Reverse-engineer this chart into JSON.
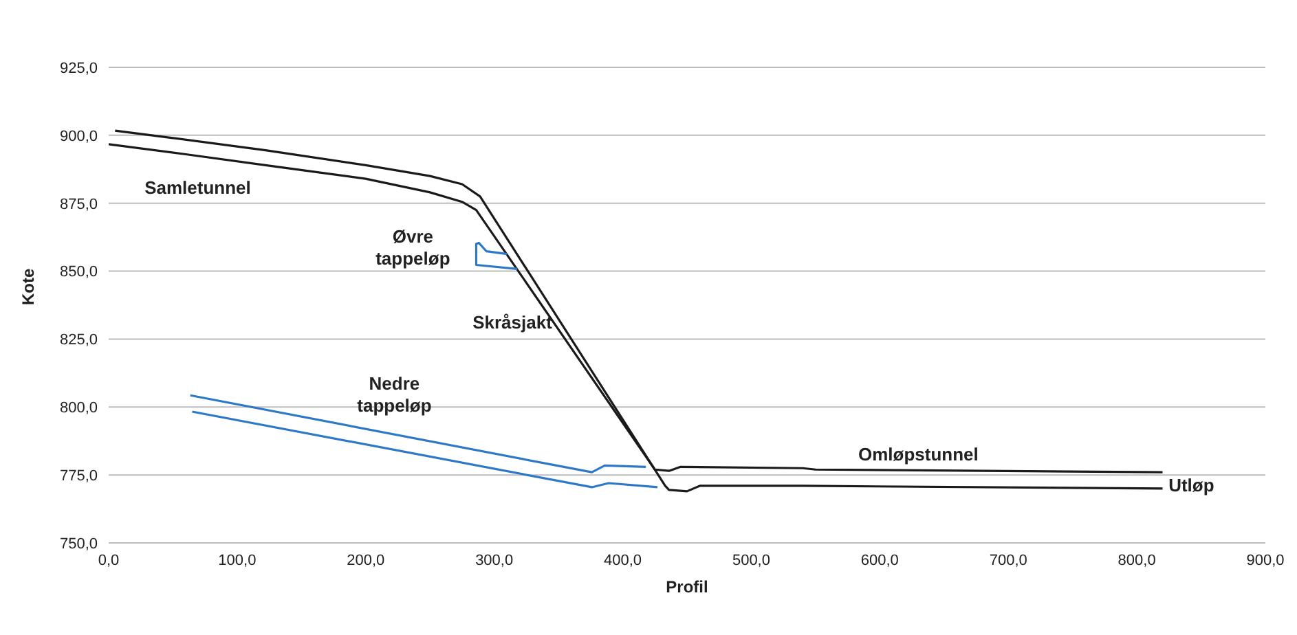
{
  "chart_data": {
    "type": "line",
    "xlabel": "Profil",
    "ylabel": "Kote",
    "series": [
      {
        "color": "#1a1a1a",
        "x": [
          5,
          50,
          122,
          200,
          250,
          275,
          289,
          433,
          436,
          450,
          460,
          540,
          820
        ],
        "values": [
          901.7,
          899,
          894.5,
          889,
          885,
          882,
          877.5,
          771,
          769.5,
          769,
          771,
          771,
          770
        ]
      },
      {
        "color": "#1a1a1a",
        "x": [
          0,
          60,
          122,
          200,
          250,
          275,
          286,
          425,
          436,
          445,
          540,
          550,
          820
        ],
        "values": [
          896.7,
          893,
          889,
          884,
          879,
          875.5,
          872.5,
          777,
          776.5,
          778,
          777.5,
          777,
          776
        ]
      },
      {
        "color": "#2e78c8",
        "x": [
          310,
          294,
          288,
          286,
          286,
          318
        ],
        "values": [
          856.3,
          857.3,
          860.4,
          860,
          852.3,
          850.8
        ]
      },
      {
        "color": "#2e78c8",
        "x": [
          63.5,
          376,
          386,
          418
        ],
        "values": [
          804.3,
          776,
          778.5,
          778
        ]
      },
      {
        "color": "#2e78c8",
        "x": [
          65,
          376,
          389,
          427
        ],
        "values": [
          798.3,
          770.5,
          772,
          770.5
        ]
      }
    ],
    "annotations": [
      "Samletunnel",
      "Øvre tappeløp",
      "Skråsjakt",
      "Nedre tappeløp",
      "Omløpstunnel",
      "Utløp"
    ],
    "xlim": [
      0,
      900
    ],
    "xticks": [
      {
        "value": 0,
        "label": "0,0"
      },
      {
        "value": 100,
        "label": "100,0"
      },
      {
        "value": 200,
        "label": "200,0"
      },
      {
        "value": 300,
        "label": "300,0"
      },
      {
        "value": 400,
        "label": "400,0"
      },
      {
        "value": 500,
        "label": "500,0"
      },
      {
        "value": 600,
        "label": "600,0"
      },
      {
        "value": 700,
        "label": "700,0"
      },
      {
        "value": 800,
        "label": "800,0"
      },
      {
        "value": 900,
        "label": "900,0"
      }
    ],
    "ylim": [
      750,
      925
    ],
    "yticks": [
      {
        "value": 750,
        "label": "750,0"
      },
      {
        "value": 775,
        "label": "775,0"
      },
      {
        "value": 800,
        "label": "800,0"
      },
      {
        "value": 825,
        "label": "825,0"
      },
      {
        "value": 850,
        "label": "850,0"
      },
      {
        "value": 875,
        "label": "875,0"
      },
      {
        "value": 900,
        "label": "900,0"
      },
      {
        "value": 925,
        "label": "925,0"
      }
    ],
    "grid": "y",
    "marker": "none",
    "line_style": "solid"
  }
}
